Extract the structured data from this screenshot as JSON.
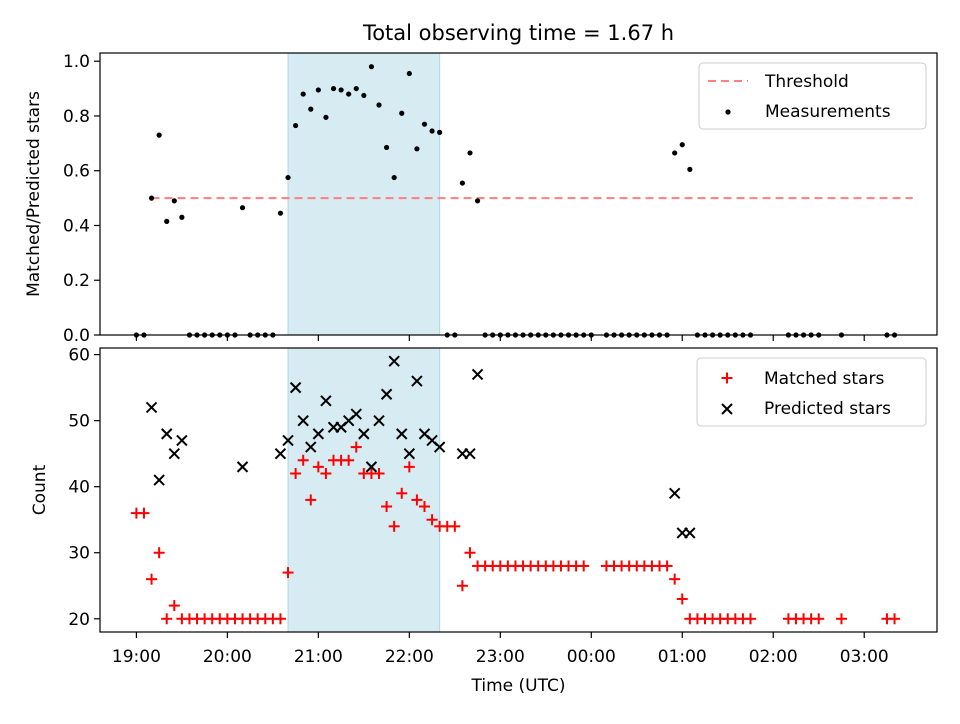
{
  "chart_data": [
    {
      "type": "scatter",
      "title": "Total observing time = 1.67 h",
      "xlabel": "",
      "ylabel": "Matched/Predicted stars",
      "xlim": [
        "18:36",
        "03:48"
      ],
      "ylim": [
        0,
        1.03
      ],
      "yticks": [
        0.0,
        0.2,
        0.4,
        0.6,
        0.8,
        1.0
      ],
      "ytick_labels": [
        "0.0",
        "0.2",
        "0.4",
        "0.6",
        "0.8",
        "1.0"
      ],
      "shaded_region": {
        "x_start": "20:40",
        "x_end": "22:20",
        "color": "#add8e6"
      },
      "threshold": {
        "name": "Threshold",
        "y": 0.5,
        "x_start": "19:10",
        "x_end": "03:32",
        "color": "#ff7f7f",
        "style": "dashed"
      },
      "legend": {
        "position": "top-right",
        "entries": [
          "Threshold",
          "Measurements"
        ]
      },
      "series": [
        {
          "name": "Measurements",
          "color": "#000000",
          "marker": "dot",
          "points": [
            [
              "19:00",
              0
            ],
            [
              "19:05",
              0
            ],
            [
              "19:10",
              0.5
            ],
            [
              "19:15",
              0.73
            ],
            [
              "19:20",
              0.415
            ],
            [
              "19:25",
              0.49
            ],
            [
              "19:30",
              0.43
            ],
            [
              "19:35",
              0
            ],
            [
              "19:40",
              0
            ],
            [
              "19:45",
              0
            ],
            [
              "19:50",
              0
            ],
            [
              "19:55",
              0
            ],
            [
              "20:00",
              0
            ],
            [
              "20:05",
              0
            ],
            [
              "20:10",
              0.465
            ],
            [
              "20:15",
              0
            ],
            [
              "20:20",
              0
            ],
            [
              "20:25",
              0
            ],
            [
              "20:30",
              0
            ],
            [
              "20:35",
              0.445
            ],
            [
              "20:40",
              0.575
            ],
            [
              "20:45",
              0.765
            ],
            [
              "20:50",
              0.88
            ],
            [
              "20:55",
              0.825
            ],
            [
              "21:00",
              0.895
            ],
            [
              "21:05",
              0.795
            ],
            [
              "21:10",
              0.9
            ],
            [
              "21:15",
              0.895
            ],
            [
              "21:20",
              0.88
            ],
            [
              "21:25",
              0.9
            ],
            [
              "21:30",
              0.875
            ],
            [
              "21:35",
              0.98
            ],
            [
              "21:40",
              0.84
            ],
            [
              "21:45",
              0.685
            ],
            [
              "21:50",
              0.575
            ],
            [
              "21:55",
              0.81
            ],
            [
              "22:00",
              0.955
            ],
            [
              "22:05",
              0.68
            ],
            [
              "22:10",
              0.77
            ],
            [
              "22:15",
              0.745
            ],
            [
              "22:20",
              0.74
            ],
            [
              "22:25",
              0
            ],
            [
              "22:30",
              0
            ],
            [
              "22:35",
              0.555
            ],
            [
              "22:40",
              0.665
            ],
            [
              "22:45",
              0.49
            ],
            [
              "22:50",
              0
            ],
            [
              "22:55",
              0
            ],
            [
              "23:00",
              0
            ],
            [
              "23:05",
              0
            ],
            [
              "23:10",
              0
            ],
            [
              "23:15",
              0
            ],
            [
              "23:20",
              0
            ],
            [
              "23:25",
              0
            ],
            [
              "23:30",
              0
            ],
            [
              "23:35",
              0
            ],
            [
              "23:40",
              0
            ],
            [
              "23:45",
              0
            ],
            [
              "23:50",
              0
            ],
            [
              "23:55",
              0
            ],
            [
              "00:00",
              0
            ],
            [
              "00:10",
              0
            ],
            [
              "00:15",
              0
            ],
            [
              "00:20",
              0
            ],
            [
              "00:25",
              0
            ],
            [
              "00:30",
              0
            ],
            [
              "00:35",
              0
            ],
            [
              "00:40",
              0
            ],
            [
              "00:45",
              0
            ],
            [
              "00:50",
              0
            ],
            [
              "00:55",
              0.665
            ],
            [
              "01:00",
              0.695
            ],
            [
              "01:05",
              0.605
            ],
            [
              "01:10",
              0
            ],
            [
              "01:15",
              0
            ],
            [
              "01:20",
              0
            ],
            [
              "01:25",
              0
            ],
            [
              "01:30",
              0
            ],
            [
              "01:35",
              0
            ],
            [
              "01:40",
              0
            ],
            [
              "01:45",
              0
            ],
            [
              "02:10",
              0
            ],
            [
              "02:15",
              0
            ],
            [
              "02:20",
              0
            ],
            [
              "02:25",
              0
            ],
            [
              "02:30",
              0
            ],
            [
              "02:45",
              0
            ],
            [
              "03:15",
              0
            ],
            [
              "03:20",
              0
            ]
          ]
        }
      ]
    },
    {
      "type": "scatter",
      "title": "",
      "xlabel": "Time (UTC)",
      "ylabel": "Count",
      "xlim": [
        "18:36",
        "03:48"
      ],
      "ylim": [
        18,
        61
      ],
      "yticks": [
        20,
        30,
        40,
        50,
        60
      ],
      "ytick_labels": [
        "20",
        "30",
        "40",
        "50",
        "60"
      ],
      "categories": [
        "19:00",
        "20:00",
        "21:00",
        "22:00",
        "23:00",
        "00:00",
        "01:00",
        "02:00",
        "03:00"
      ],
      "shaded_region": {
        "x_start": "20:40",
        "x_end": "22:20",
        "color": "#add8e6"
      },
      "legend": {
        "position": "top-right",
        "entries": [
          "Matched stars",
          "Predicted stars"
        ]
      },
      "series": [
        {
          "name": "Matched stars",
          "color": "#ff0000",
          "marker": "plus",
          "points": [
            [
              "19:00",
              36
            ],
            [
              "19:05",
              36
            ],
            [
              "19:10",
              26
            ],
            [
              "19:15",
              30
            ],
            [
              "19:20",
              20
            ],
            [
              "19:25",
              22
            ],
            [
              "19:30",
              20
            ],
            [
              "19:35",
              20
            ],
            [
              "19:40",
              20
            ],
            [
              "19:45",
              20
            ],
            [
              "19:50",
              20
            ],
            [
              "19:55",
              20
            ],
            [
              "20:00",
              20
            ],
            [
              "20:05",
              20
            ],
            [
              "20:10",
              20
            ],
            [
              "20:15",
              20
            ],
            [
              "20:20",
              20
            ],
            [
              "20:25",
              20
            ],
            [
              "20:30",
              20
            ],
            [
              "20:35",
              20
            ],
            [
              "20:40",
              27
            ],
            [
              "20:45",
              42
            ],
            [
              "20:50",
              44
            ],
            [
              "20:55",
              38
            ],
            [
              "21:00",
              43
            ],
            [
              "21:05",
              42
            ],
            [
              "21:10",
              44
            ],
            [
              "21:15",
              44
            ],
            [
              "21:20",
              44
            ],
            [
              "21:25",
              46
            ],
            [
              "21:30",
              42
            ],
            [
              "21:35",
              42
            ],
            [
              "21:40",
              42
            ],
            [
              "21:45",
              37
            ],
            [
              "21:50",
              34
            ],
            [
              "21:55",
              39
            ],
            [
              "22:00",
              43
            ],
            [
              "22:05",
              38
            ],
            [
              "22:10",
              37
            ],
            [
              "22:15",
              35
            ],
            [
              "22:20",
              34
            ],
            [
              "22:25",
              34
            ],
            [
              "22:30",
              34
            ],
            [
              "22:35",
              25
            ],
            [
              "22:40",
              30
            ],
            [
              "22:45",
              28
            ],
            [
              "22:50",
              28
            ],
            [
              "22:55",
              28
            ],
            [
              "23:00",
              28
            ],
            [
              "23:05",
              28
            ],
            [
              "23:10",
              28
            ],
            [
              "23:15",
              28
            ],
            [
              "23:20",
              28
            ],
            [
              "23:25",
              28
            ],
            [
              "23:30",
              28
            ],
            [
              "23:35",
              28
            ],
            [
              "23:40",
              28
            ],
            [
              "23:45",
              28
            ],
            [
              "23:50",
              28
            ],
            [
              "23:55",
              28
            ],
            [
              "00:10",
              28
            ],
            [
              "00:15",
              28
            ],
            [
              "00:20",
              28
            ],
            [
              "00:25",
              28
            ],
            [
              "00:30",
              28
            ],
            [
              "00:35",
              28
            ],
            [
              "00:40",
              28
            ],
            [
              "00:45",
              28
            ],
            [
              "00:50",
              28
            ],
            [
              "00:55",
              26
            ],
            [
              "01:00",
              23
            ],
            [
              "01:05",
              20
            ],
            [
              "01:10",
              20
            ],
            [
              "01:15",
              20
            ],
            [
              "01:20",
              20
            ],
            [
              "01:25",
              20
            ],
            [
              "01:30",
              20
            ],
            [
              "01:35",
              20
            ],
            [
              "01:40",
              20
            ],
            [
              "01:45",
              20
            ],
            [
              "02:10",
              20
            ],
            [
              "02:15",
              20
            ],
            [
              "02:20",
              20
            ],
            [
              "02:25",
              20
            ],
            [
              "02:30",
              20
            ],
            [
              "02:45",
              20
            ],
            [
              "03:15",
              20
            ],
            [
              "03:20",
              20
            ]
          ]
        },
        {
          "name": "Predicted stars",
          "color": "#000000",
          "marker": "x",
          "points": [
            [
              "19:10",
              52
            ],
            [
              "19:15",
              41
            ],
            [
              "19:20",
              48
            ],
            [
              "19:25",
              45
            ],
            [
              "19:30",
              47
            ],
            [
              "20:10",
              43
            ],
            [
              "20:35",
              45
            ],
            [
              "20:40",
              47
            ],
            [
              "20:45",
              55
            ],
            [
              "20:50",
              50
            ],
            [
              "20:55",
              46
            ],
            [
              "21:00",
              48
            ],
            [
              "21:05",
              53
            ],
            [
              "21:10",
              49
            ],
            [
              "21:15",
              49
            ],
            [
              "21:20",
              50
            ],
            [
              "21:25",
              51
            ],
            [
              "21:30",
              48
            ],
            [
              "21:35",
              43
            ],
            [
              "21:40",
              50
            ],
            [
              "21:45",
              54
            ],
            [
              "21:50",
              59
            ],
            [
              "21:55",
              48
            ],
            [
              "22:00",
              45
            ],
            [
              "22:05",
              56
            ],
            [
              "22:10",
              48
            ],
            [
              "22:15",
              47
            ],
            [
              "22:20",
              46
            ],
            [
              "22:35",
              45
            ],
            [
              "22:40",
              45
            ],
            [
              "22:45",
              57
            ],
            [
              "00:55",
              39
            ],
            [
              "01:00",
              33
            ],
            [
              "01:05",
              33
            ]
          ]
        }
      ]
    }
  ]
}
